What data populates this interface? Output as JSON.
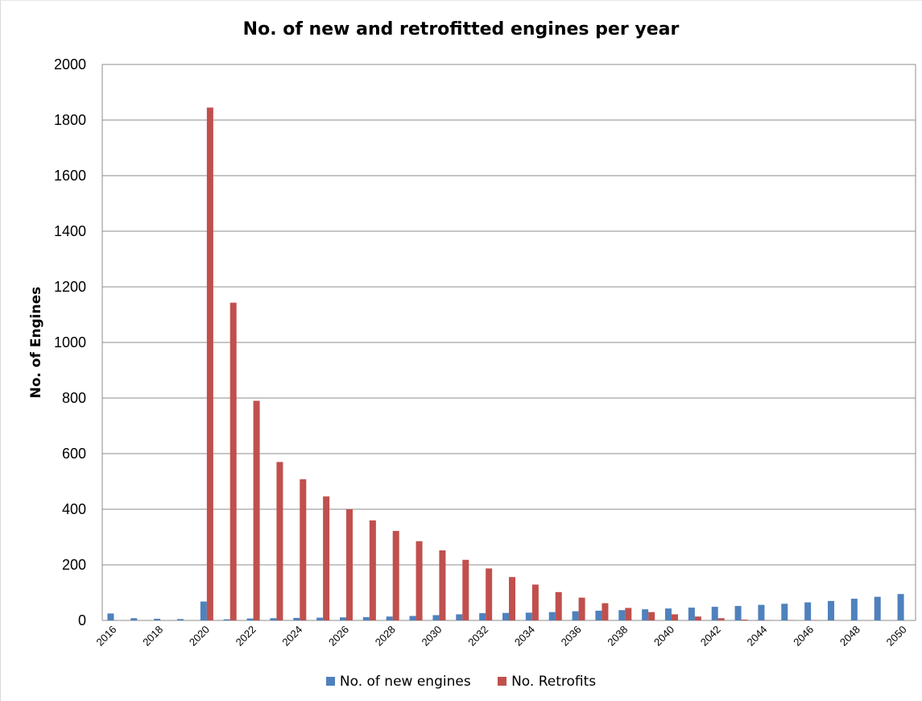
{
  "chart_data": {
    "type": "bar",
    "title": "No. of new and retrofitted engines per year",
    "xlabel": "",
    "ylabel": "No. of Engines",
    "ylim": [
      0,
      2000
    ],
    "yticks": [
      0,
      200,
      400,
      600,
      800,
      1000,
      1200,
      1400,
      1600,
      1800,
      2000
    ],
    "grid": true,
    "legend_position": "bottom",
    "categories": [
      "2016",
      "2017",
      "2018",
      "2019",
      "2020",
      "2021",
      "2022",
      "2023",
      "2024",
      "2025",
      "2026",
      "2027",
      "2028",
      "2029",
      "2030",
      "2031",
      "2032",
      "2033",
      "2034",
      "2035",
      "2036",
      "2037",
      "2038",
      "2039",
      "2040",
      "2041",
      "2042",
      "2043",
      "2044",
      "2045",
      "2046",
      "2047",
      "2048",
      "2049",
      "2050"
    ],
    "tick_labels": [
      "2016",
      "",
      "2018",
      "",
      "2020",
      "",
      "2022",
      "",
      "2024",
      "",
      "2026",
      "",
      "2028",
      "",
      "2030",
      "",
      "2032",
      "",
      "2034",
      "",
      "2036",
      "",
      "2038",
      "",
      "2040",
      "",
      "2042",
      "",
      "2044",
      "",
      "2046",
      "",
      "2048",
      "",
      "2050"
    ],
    "series": [
      {
        "name": "No. of new engines",
        "color": "#4f81bd",
        "values": [
          25,
          8,
          6,
          5,
          68,
          4,
          7,
          8,
          9,
          10,
          11,
          12,
          14,
          16,
          19,
          22,
          26,
          27,
          28,
          30,
          33,
          35,
          37,
          40,
          43,
          46,
          49,
          52,
          56,
          60,
          65,
          70,
          78,
          85,
          95
        ]
      },
      {
        "name": "No. Retrofits",
        "color": "#c0504d",
        "values": [
          0,
          0,
          0,
          0,
          1845,
          1143,
          790,
          570,
          508,
          446,
          400,
          360,
          322,
          285,
          252,
          218,
          187,
          156,
          129,
          102,
          82,
          62,
          45,
          30,
          22,
          14,
          8,
          3,
          1,
          1,
          1,
          0,
          0,
          0,
          0
        ]
      }
    ]
  }
}
